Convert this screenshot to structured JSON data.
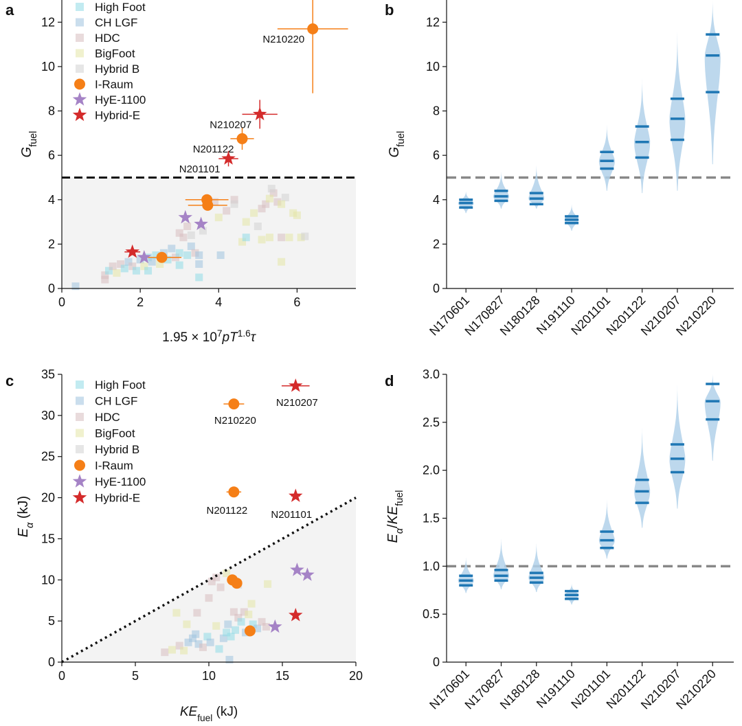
{
  "colors": {
    "high_foot": "#8fdbe6",
    "ch_lgf": "#9fc2de",
    "hdc": "#d7bebf",
    "bigfoot": "#e4e6a5",
    "hybrid_b": "#d2d2d2",
    "i_raum": "#f57f17",
    "hye_1100": "#a583c6",
    "hybrid_e": "#d42b2b",
    "violin_fill": "#b2d1ea",
    "violin_mark": "#1f77b4",
    "threshold_dash": "#888888",
    "shade": "#f3f3f3"
  },
  "legend": [
    {
      "label": "High Foot",
      "marker": "square",
      "color_key": "high_foot"
    },
    {
      "label": "CH LGF",
      "marker": "square",
      "color_key": "ch_lgf"
    },
    {
      "label": "HDC",
      "marker": "square",
      "color_key": "hdc"
    },
    {
      "label": "BigFoot",
      "marker": "square",
      "color_key": "bigfoot"
    },
    {
      "label": "Hybrid B",
      "marker": "square",
      "color_key": "hybrid_b"
    },
    {
      "label": "I-Raum",
      "marker": "circle",
      "color_key": "i_raum"
    },
    {
      "label": "HyE-1100",
      "marker": "star",
      "color_key": "hye_1100"
    },
    {
      "label": "Hybrid-E",
      "marker": "star",
      "color_key": "hybrid_e"
    }
  ],
  "chart_data": [
    {
      "panel": "a",
      "type": "scatter",
      "xlabel": "1.95 × 10⁷pT¹·⁶τ",
      "ylabel": "G_fuel",
      "xlim": [
        0,
        7.5
      ],
      "ylim": [
        0,
        13
      ],
      "xticks": [
        "0",
        "2",
        "4",
        "6"
      ],
      "yticks": [
        "0",
        "2",
        "4",
        "6",
        "8",
        "10",
        "12"
      ],
      "threshold": 5,
      "shaded_below_threshold": true,
      "background_squares": [
        [
          0.35,
          0.1,
          "ch_lgf"
        ],
        [
          1.1,
          0.6,
          "hdc"
        ],
        [
          1.2,
          0.8,
          "high_foot"
        ],
        [
          1.3,
          1.0,
          "hdc"
        ],
        [
          1.4,
          0.7,
          "bigfoot"
        ],
        [
          1.5,
          1.1,
          "hdc"
        ],
        [
          1.6,
          0.9,
          "high_foot"
        ],
        [
          1.7,
          1.2,
          "ch_lgf"
        ],
        [
          1.8,
          1.0,
          "hdc"
        ],
        [
          1.9,
          0.8,
          "high_foot"
        ],
        [
          2.0,
          1.3,
          "ch_lgf"
        ],
        [
          2.1,
          1.0,
          "bigfoot"
        ],
        [
          2.2,
          1.4,
          "high_foot"
        ],
        [
          2.3,
          1.2,
          "ch_lgf"
        ],
        [
          2.4,
          1.5,
          "high_foot"
        ],
        [
          2.5,
          1.1,
          "bigfoot"
        ],
        [
          2.6,
          1.6,
          "ch_lgf"
        ],
        [
          2.7,
          1.3,
          "high_foot"
        ],
        [
          2.8,
          1.8,
          "ch_lgf"
        ],
        [
          2.9,
          1.4,
          "hdc"
        ],
        [
          3.0,
          1.6,
          "high_foot"
        ],
        [
          3.1,
          2.3,
          "hdc"
        ],
        [
          3.2,
          1.5,
          "high_foot"
        ],
        [
          3.3,
          1.9,
          "ch_lgf"
        ],
        [
          3.4,
          1.6,
          "hdc"
        ],
        [
          3.5,
          1.5,
          "ch_lgf"
        ],
        [
          3.5,
          0.5,
          "high_foot"
        ],
        [
          3.2,
          2.8,
          "hdc"
        ],
        [
          3.6,
          2.6,
          "hybrid_b"
        ],
        [
          3.0,
          2.5,
          "hdc"
        ],
        [
          4.0,
          3.2,
          "bigfoot"
        ],
        [
          4.2,
          3.5,
          "hdc"
        ],
        [
          4.6,
          2.1,
          "bigfoot"
        ],
        [
          4.9,
          3.4,
          "bigfoot"
        ],
        [
          5.0,
          2.8,
          "hybrid_b"
        ],
        [
          5.2,
          3.8,
          "hdc"
        ],
        [
          5.3,
          2.3,
          "bigfoot"
        ],
        [
          5.5,
          3.9,
          "hdc"
        ],
        [
          5.6,
          2.3,
          "hdc"
        ],
        [
          5.7,
          4.1,
          "hybrid_b"
        ],
        [
          5.9,
          3.4,
          "bigfoot"
        ],
        [
          5.8,
          2.3,
          "bigfoot"
        ],
        [
          5.4,
          4.3,
          "hdc"
        ],
        [
          5.35,
          4.5,
          "hybrid_b"
        ],
        [
          4.7,
          3.0,
          "bigfoot"
        ],
        [
          5.1,
          3.6,
          "hdc"
        ],
        [
          5.6,
          3.8,
          "bigfoot"
        ],
        [
          6.1,
          2.3,
          "bigfoot"
        ],
        [
          6.0,
          3.3,
          "bigfoot"
        ],
        [
          5.3,
          4.05,
          "bigfoot"
        ],
        [
          4.4,
          4.0,
          "hdc"
        ],
        [
          5.6,
          1.2,
          "bigfoot"
        ],
        [
          3.9,
          3.9,
          "hdc"
        ],
        [
          6.2,
          2.35,
          "hybrid_b"
        ],
        [
          5.1,
          2.2,
          "bigfoot"
        ],
        [
          3.3,
          2.4,
          "hybrid_b"
        ],
        [
          3.5,
          1.1,
          "ch_lgf"
        ],
        [
          3.0,
          1.05,
          "high_foot"
        ],
        [
          2.2,
          0.8,
          "high_foot"
        ],
        [
          1.1,
          0.4,
          "hdc"
        ],
        [
          4.05,
          1.5,
          "ch_lgf"
        ],
        [
          4.7,
          2.3,
          "high_foot"
        ],
        [
          4.4,
          3.8,
          "hybrid_b"
        ]
      ],
      "highlight": [
        {
          "series": "I-Raum",
          "marker": "circle",
          "color_key": "i_raum",
          "x": 6.4,
          "y": 11.7,
          "xerr": 0.9,
          "yerr_up": 2.1,
          "yerr_down": 2.9,
          "label": "N210220"
        },
        {
          "series": "I-Raum",
          "marker": "circle",
          "color_key": "i_raum",
          "x": 4.6,
          "y": 6.75,
          "xerr": 0.3,
          "yerr_up": 0.5,
          "yerr_down": 0.5,
          "label": "N201122"
        },
        {
          "series": "Hybrid-E",
          "marker": "star",
          "color_key": "hybrid_e",
          "x": 5.05,
          "y": 7.85,
          "xerr": 0.45,
          "yerr_up": 0.65,
          "yerr_down": 0.65,
          "label": "N210207"
        },
        {
          "series": "Hybrid-E",
          "marker": "star",
          "color_key": "hybrid_e",
          "x": 4.25,
          "y": 5.85,
          "xerr": 0.25,
          "yerr_up": 0.35,
          "yerr_down": 0.35,
          "label": "N201101"
        },
        {
          "series": "I-Raum",
          "marker": "circle",
          "color_key": "i_raum",
          "x": 3.7,
          "y": 4.0,
          "xerr": 0.55,
          "yerr_up": 0.2,
          "yerr_down": 0.2,
          "label": ""
        },
        {
          "series": "I-Raum",
          "marker": "circle",
          "color_key": "i_raum",
          "x": 3.72,
          "y": 3.75,
          "xerr": 0.5,
          "yerr_up": 0.2,
          "yerr_down": 0.2,
          "label": ""
        },
        {
          "series": "I-Raum",
          "marker": "circle",
          "color_key": "i_raum",
          "x": 2.55,
          "y": 1.4,
          "xerr": 0.5,
          "yerr_up": 0.15,
          "yerr_down": 0.15,
          "label": ""
        },
        {
          "series": "HyE-1100",
          "marker": "star",
          "color_key": "hye_1100",
          "x": 3.15,
          "y": 3.2,
          "xerr": 0,
          "yerr_up": 0,
          "yerr_down": 0,
          "label": ""
        },
        {
          "series": "HyE-1100",
          "marker": "star",
          "color_key": "hye_1100",
          "x": 3.55,
          "y": 2.9,
          "xerr": 0,
          "yerr_up": 0,
          "yerr_down": 0,
          "label": ""
        },
        {
          "series": "HyE-1100",
          "marker": "star",
          "color_key": "hye_1100",
          "x": 2.1,
          "y": 1.4,
          "xerr": 0,
          "yerr_up": 0,
          "yerr_down": 0,
          "label": ""
        },
        {
          "series": "Hybrid-E",
          "marker": "star",
          "color_key": "hybrid_e",
          "x": 1.8,
          "y": 1.65,
          "xerr": 0.2,
          "yerr_up": 0.15,
          "yerr_down": 0.15,
          "label": ""
        }
      ]
    },
    {
      "panel": "b",
      "type": "violin",
      "ylabel": "G_fuel",
      "ylim": [
        0,
        13
      ],
      "yticks": [
        "0",
        "2",
        "4",
        "6",
        "8",
        "10",
        "12"
      ],
      "threshold": 5,
      "categories": [
        "N170601",
        "N170827",
        "N180128",
        "N191110",
        "N201101",
        "N201122",
        "N210207",
        "N210220"
      ],
      "violins": [
        {
          "median": 3.85,
          "q_low": 3.65,
          "q_high": 4.0,
          "min": 3.4,
          "max": 4.4,
          "width": 0.45
        },
        {
          "median": 4.15,
          "q_low": 3.95,
          "q_high": 4.4,
          "min": 3.6,
          "max": 5.3,
          "width": 0.45
        },
        {
          "median": 4.05,
          "q_low": 3.8,
          "q_high": 4.3,
          "min": 3.6,
          "max": 5.6,
          "width": 0.45
        },
        {
          "median": 3.1,
          "q_low": 2.95,
          "q_high": 3.25,
          "min": 2.6,
          "max": 3.8,
          "width": 0.4
        },
        {
          "median": 5.75,
          "q_low": 5.4,
          "q_high": 6.15,
          "min": 4.4,
          "max": 7.4,
          "width": 0.45
        },
        {
          "median": 6.6,
          "q_low": 5.9,
          "q_high": 7.3,
          "min": 4.3,
          "max": 9.5,
          "width": 0.45
        },
        {
          "median": 7.65,
          "q_low": 6.7,
          "q_high": 8.55,
          "min": 4.4,
          "max": 11.6,
          "width": 0.45
        },
        {
          "median": 10.5,
          "q_low": 8.85,
          "q_high": 11.45,
          "min": 5.6,
          "max": 13.0,
          "width": 0.45
        }
      ]
    },
    {
      "panel": "c",
      "type": "scatter",
      "xlabel": "KE_fuel (kJ)",
      "ylabel": "E_α (kJ)",
      "xlim": [
        0,
        20
      ],
      "ylim": [
        0,
        35
      ],
      "xticks": [
        "0",
        "5",
        "10",
        "15",
        "20"
      ],
      "yticks": [
        "0",
        "5",
        "10",
        "15",
        "20",
        "25",
        "30",
        "35"
      ],
      "diagonal_line": "y = x",
      "background_squares": [
        [
          7.0,
          1.2,
          "hdc"
        ],
        [
          7.5,
          1.5,
          "bigfoot"
        ],
        [
          8.0,
          2.0,
          "hdc"
        ],
        [
          8.3,
          1.4,
          "bigfoot"
        ],
        [
          8.6,
          2.4,
          "ch_lgf"
        ],
        [
          8.9,
          2.9,
          "ch_lgf"
        ],
        [
          9.1,
          3.4,
          "ch_lgf"
        ],
        [
          9.3,
          2.2,
          "ch_lgf"
        ],
        [
          9.6,
          1.8,
          "hdc"
        ],
        [
          9.9,
          3.1,
          "high_foot"
        ],
        [
          10.1,
          2.4,
          "ch_lgf"
        ],
        [
          10.5,
          4.4,
          "bigfoot"
        ],
        [
          10.7,
          1.6,
          "high_foot"
        ],
        [
          11.0,
          2.9,
          "ch_lgf"
        ],
        [
          11.2,
          3.6,
          "high_foot"
        ],
        [
          11.3,
          4.6,
          "ch_lgf"
        ],
        [
          11.5,
          3.1,
          "high_foot"
        ],
        [
          11.8,
          3.9,
          "high_foot"
        ],
        [
          12.0,
          5.4,
          "hdc"
        ],
        [
          12.2,
          4.9,
          "high_foot"
        ],
        [
          12.4,
          6.1,
          "hdc"
        ],
        [
          12.5,
          3.6,
          "ch_lgf"
        ],
        [
          12.7,
          5.8,
          "bigfoot"
        ],
        [
          13.0,
          4.6,
          "high_foot"
        ],
        [
          13.3,
          4.1,
          "ch_lgf"
        ],
        [
          11.4,
          0.3,
          "ch_lgf"
        ],
        [
          10.2,
          9.8,
          "hdc"
        ],
        [
          10.5,
          10.3,
          "hdc"
        ],
        [
          10.8,
          9.1,
          "hdc"
        ],
        [
          11.2,
          10.8,
          "bigfoot"
        ],
        [
          10.0,
          7.8,
          "hdc"
        ],
        [
          11.7,
          6.1,
          "hdc"
        ],
        [
          12.9,
          7.1,
          "bigfoot"
        ],
        [
          14.0,
          9.5,
          "bigfoot"
        ],
        [
          13.6,
          4.9,
          "hdc"
        ],
        [
          12.0,
          9.4,
          "hybrid_b"
        ],
        [
          9.2,
          6.0,
          "hdc"
        ],
        [
          8.5,
          4.6,
          "bigfoot"
        ],
        [
          7.8,
          6.0,
          "bigfoot"
        ],
        [
          13.9,
          4.3,
          "hdc"
        ]
      ],
      "highlight": [
        {
          "series": "Hybrid-E",
          "marker": "star",
          "color_key": "hybrid_e",
          "x": 15.9,
          "y": 33.6,
          "xerr": 0.95,
          "label": "N210207"
        },
        {
          "series": "I-Raum",
          "marker": "circle",
          "color_key": "i_raum",
          "x": 11.7,
          "y": 31.4,
          "xerr": 0.7,
          "label": "N210220"
        },
        {
          "series": "I-Raum",
          "marker": "circle",
          "color_key": "i_raum",
          "x": 11.7,
          "y": 20.7,
          "xerr": 0.5,
          "label": "N201122"
        },
        {
          "series": "Hybrid-E",
          "marker": "star",
          "color_key": "hybrid_e",
          "x": 15.9,
          "y": 20.2,
          "xerr": 0.3,
          "label": "N201101"
        },
        {
          "series": "I-Raum",
          "marker": "circle",
          "color_key": "i_raum",
          "x": 11.6,
          "y": 10.0,
          "xerr": 0,
          "label": ""
        },
        {
          "series": "I-Raum",
          "marker": "circle",
          "color_key": "i_raum",
          "x": 11.9,
          "y": 9.6,
          "xerr": 0,
          "label": ""
        },
        {
          "series": "I-Raum",
          "marker": "circle",
          "color_key": "i_raum",
          "x": 12.8,
          "y": 3.8,
          "xerr": 0,
          "label": ""
        },
        {
          "series": "HyE-1100",
          "marker": "star",
          "color_key": "hye_1100",
          "x": 16.0,
          "y": 11.2,
          "xerr": 0,
          "label": ""
        },
        {
          "series": "HyE-1100",
          "marker": "star",
          "color_key": "hye_1100",
          "x": 16.7,
          "y": 10.6,
          "xerr": 0,
          "label": ""
        },
        {
          "series": "HyE-1100",
          "marker": "star",
          "color_key": "hye_1100",
          "x": 14.5,
          "y": 4.3,
          "xerr": 0,
          "label": ""
        },
        {
          "series": "Hybrid-E",
          "marker": "star",
          "color_key": "hybrid_e",
          "x": 15.9,
          "y": 5.7,
          "xerr": 0,
          "label": ""
        }
      ]
    },
    {
      "panel": "d",
      "type": "violin",
      "ylabel": "E_α/KE_fuel",
      "ylim": [
        0,
        3.0
      ],
      "yticks": [
        "0",
        "0.5",
        "1.0",
        "1.5",
        "2.0",
        "2.5",
        "3.0"
      ],
      "threshold": 1.0,
      "categories": [
        "N170601",
        "N170827",
        "N180128",
        "N191110",
        "N201101",
        "N201122",
        "N210207",
        "N210220"
      ],
      "violins": [
        {
          "median": 0.85,
          "q_low": 0.8,
          "q_high": 0.9,
          "min": 0.72,
          "max": 1.1,
          "width": 0.45
        },
        {
          "median": 0.9,
          "q_low": 0.85,
          "q_high": 0.96,
          "min": 0.76,
          "max": 1.3,
          "width": 0.45
        },
        {
          "median": 0.88,
          "q_low": 0.83,
          "q_high": 0.93,
          "min": 0.73,
          "max": 1.25,
          "width": 0.45
        },
        {
          "median": 0.7,
          "q_low": 0.66,
          "q_high": 0.74,
          "min": 0.6,
          "max": 0.82,
          "width": 0.4
        },
        {
          "median": 1.27,
          "q_low": 1.19,
          "q_high": 1.36,
          "min": 1.08,
          "max": 1.7,
          "width": 0.45
        },
        {
          "median": 1.78,
          "q_low": 1.66,
          "q_high": 1.9,
          "min": 1.4,
          "max": 2.45,
          "width": 0.45
        },
        {
          "median": 2.12,
          "q_low": 1.98,
          "q_high": 2.27,
          "min": 1.6,
          "max": 2.9,
          "width": 0.45
        },
        {
          "median": 2.72,
          "q_low": 2.53,
          "q_high": 2.9,
          "min": 2.1,
          "max": 3.0,
          "width": 0.45
        }
      ]
    }
  ]
}
